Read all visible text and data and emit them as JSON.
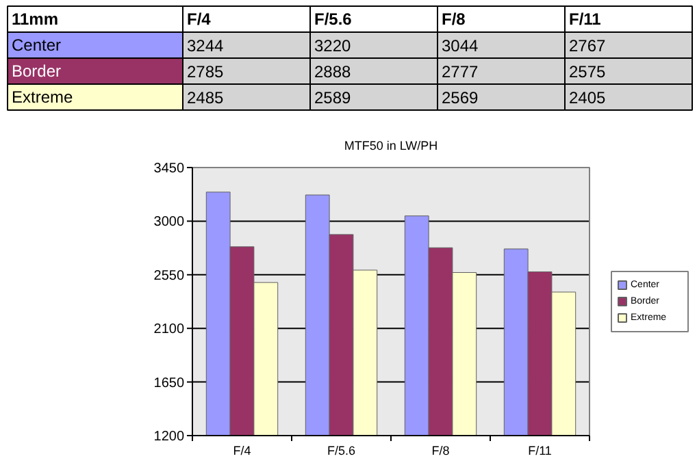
{
  "chart_data": {
    "type": "bar",
    "title": "MTF50 in LW/PH",
    "annotations": [
      "11mm"
    ],
    "categories": [
      "F/4",
      "F/5.6",
      "F/8",
      "F/11"
    ],
    "series": [
      {
        "name": "Center",
        "color": "#9999ff",
        "values": [
          3244,
          3220,
          3044,
          2767
        ]
      },
      {
        "name": "Border",
        "color": "#993366",
        "values": [
          2785,
          2888,
          2777,
          2575
        ]
      },
      {
        "name": "Extreme",
        "color": "#ffffcc",
        "values": [
          2485,
          2589,
          2569,
          2405
        ]
      }
    ],
    "ylim": [
      1200,
      3450
    ],
    "yticks": [
      1200,
      1650,
      2100,
      2550,
      3000,
      3450
    ],
    "grid": "y",
    "legend": "right",
    "data_labels": true
  }
}
